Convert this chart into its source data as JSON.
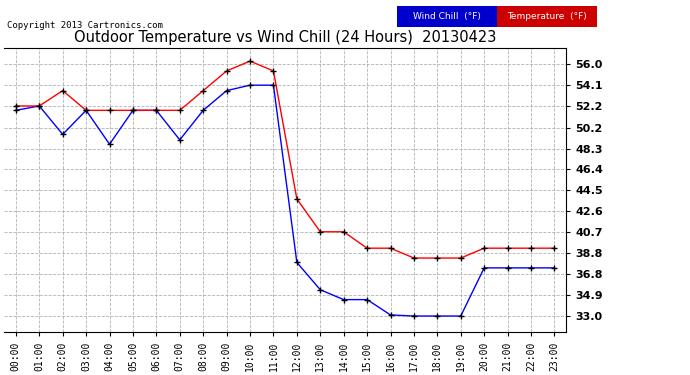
{
  "title": "Outdoor Temperature vs Wind Chill (24 Hours)  20130423",
  "copyright": "Copyright 2013 Cartronics.com",
  "x_labels": [
    "00:00",
    "01:00",
    "02:00",
    "03:00",
    "04:00",
    "05:00",
    "06:00",
    "07:00",
    "08:00",
    "09:00",
    "10:00",
    "11:00",
    "12:00",
    "13:00",
    "14:00",
    "15:00",
    "16:00",
    "17:00",
    "18:00",
    "19:00",
    "20:00",
    "21:00",
    "22:00",
    "23:00"
  ],
  "temperature": [
    52.2,
    52.2,
    53.6,
    51.8,
    51.8,
    51.8,
    51.8,
    51.8,
    53.6,
    55.4,
    56.3,
    55.4,
    43.7,
    40.7,
    40.7,
    39.2,
    39.2,
    38.3,
    38.3,
    38.3,
    39.2,
    39.2,
    39.2,
    39.2
  ],
  "wind_chill": [
    51.8,
    52.2,
    49.6,
    51.8,
    48.7,
    51.8,
    51.8,
    49.1,
    51.8,
    53.6,
    54.1,
    54.1,
    37.9,
    35.4,
    34.5,
    34.5,
    33.1,
    33.0,
    33.0,
    33.0,
    37.4,
    37.4,
    37.4,
    37.4
  ],
  "y_ticks": [
    33.0,
    34.9,
    36.8,
    38.8,
    40.7,
    42.6,
    44.5,
    46.4,
    48.3,
    50.2,
    52.2,
    54.1,
    56.0
  ],
  "y_min": 31.5,
  "y_max": 57.5,
  "temp_color": "#ff0000",
  "wind_chill_color": "#0000ff",
  "marker_color": "#000000",
  "background_color": "#ffffff",
  "grid_color": "#aaaaaa",
  "legend_wind_chill_bg": "#0000cc",
  "legend_temp_bg": "#cc0000",
  "legend_text_color": "#ffffff"
}
